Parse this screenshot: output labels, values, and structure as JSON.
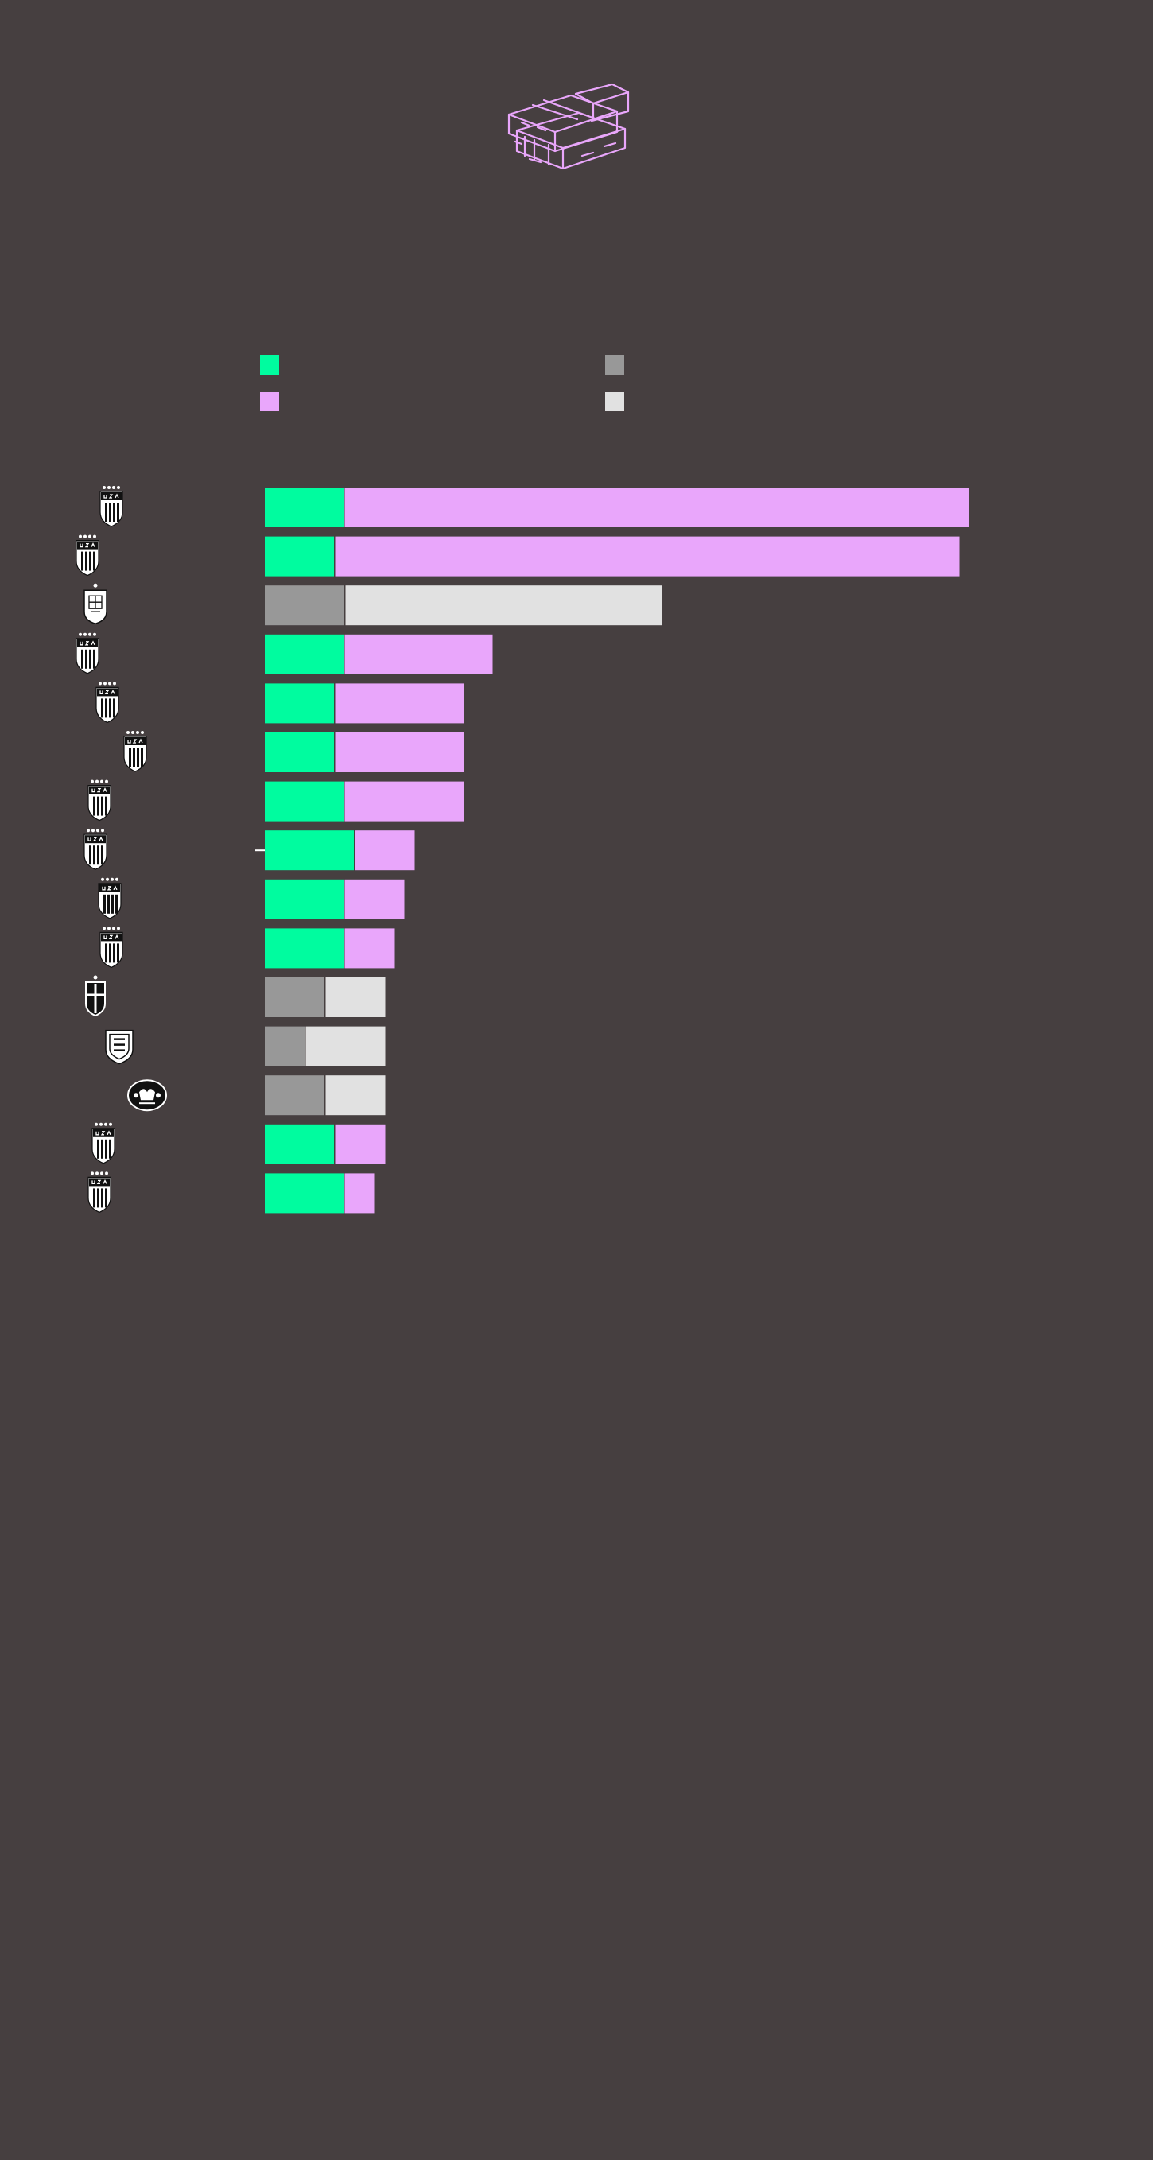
{
  "colors": {
    "background": "#463f40",
    "us_base": "#00fc9f",
    "us_extra": "#e9a6fb",
    "intl_base": "#989898",
    "intl_extra": "#e1e1e1",
    "crest": "#ffffff",
    "crest_ink": "#111111"
  },
  "illustration": {
    "icon": "money-stack-icon",
    "color": "#e9a6fb"
  },
  "legend": [
    {
      "color": "#00fc9f"
    },
    {
      "color": "#989898"
    },
    {
      "color": "#e9a6fb"
    },
    {
      "color": "#e1e1e1"
    }
  ],
  "chart_data": {
    "type": "bar",
    "orientation": "horizontal",
    "stacked": true,
    "title": "",
    "xlabel": "",
    "ylabel": "",
    "x_range": [
      0,
      885
    ],
    "grid": false,
    "legend_position": "top",
    "rows": [
      {
        "crest": "usa-crest-icon",
        "base": 99,
        "extra": 785,
        "style": "us",
        "offset": 40
      },
      {
        "crest": "usa-crest-icon",
        "base": 87,
        "extra": 785,
        "style": "us",
        "offset": 10
      },
      {
        "crest": "spain-crest-icon",
        "base": 100,
        "extra": 398,
        "style": "intl",
        "offset": 20
      },
      {
        "crest": "usa-crest-icon",
        "base": 99,
        "extra": 186,
        "style": "us",
        "offset": 10
      },
      {
        "crest": "usa-crest-icon",
        "base": 87,
        "extra": 162,
        "style": "us",
        "offset": 35
      },
      {
        "crest": "usa-crest-icon",
        "base": 87,
        "extra": 162,
        "style": "us",
        "offset": 70
      },
      {
        "crest": "usa-crest-icon",
        "base": 99,
        "extra": 150,
        "style": "us",
        "offset": 25
      },
      {
        "crest": "usa-crest-icon",
        "base": 112,
        "extra": 75,
        "style": "us",
        "offset": 20,
        "marker": true
      },
      {
        "crest": "usa-crest-icon",
        "base": 99,
        "extra": 75,
        "style": "us",
        "offset": 38
      },
      {
        "crest": "usa-crest-icon",
        "base": 99,
        "extra": 63,
        "style": "us",
        "offset": 40
      },
      {
        "crest": "sweden-crest-icon",
        "base": 75,
        "extra": 75,
        "style": "intl",
        "offset": 20
      },
      {
        "crest": "england-crest-icon",
        "base": 50,
        "extra": 100,
        "style": "intl",
        "offset": 50
      },
      {
        "crest": "australia-crest-icon",
        "base": 75,
        "extra": 75,
        "style": "intl",
        "offset": 85
      },
      {
        "crest": "usa-crest-icon",
        "base": 87,
        "extra": 63,
        "style": "us",
        "offset": 30
      },
      {
        "crest": "usa-crest-icon",
        "base": 99,
        "extra": 37,
        "style": "us",
        "offset": 25
      }
    ]
  }
}
